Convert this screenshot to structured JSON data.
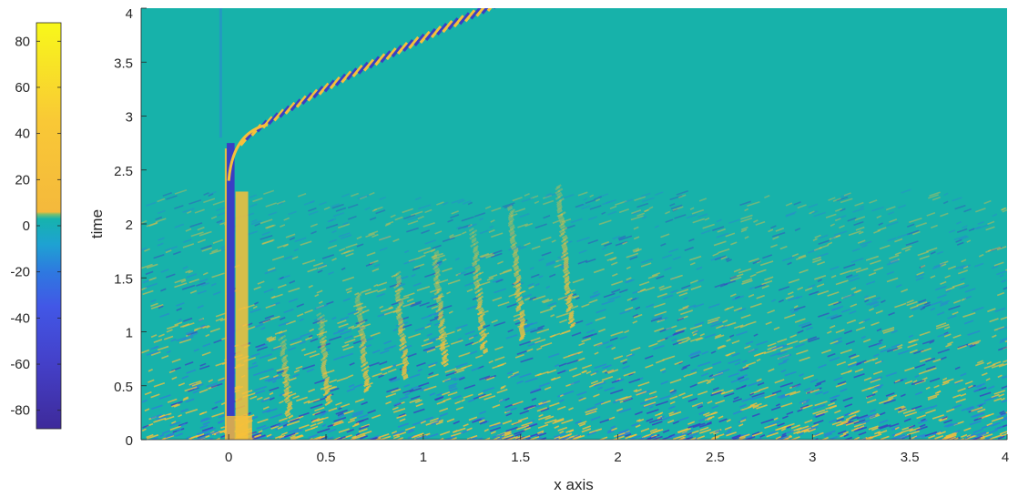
{
  "chart_data": {
    "type": "heatmap",
    "title": "",
    "xlabel": "x axis",
    "ylabel": "time",
    "xlim": [
      -0.45,
      4
    ],
    "ylim": [
      0,
      4
    ],
    "x_ticks": [
      {
        "value": 0,
        "label": "0"
      },
      {
        "value": 0.5,
        "label": "0.5"
      },
      {
        "value": 1,
        "label": "1"
      },
      {
        "value": 1.5,
        "label": "1.5"
      },
      {
        "value": 2,
        "label": "2"
      },
      {
        "value": 2.5,
        "label": "2.5"
      },
      {
        "value": 3,
        "label": "3"
      },
      {
        "value": 3.5,
        "label": "3.5"
      },
      {
        "value": 4,
        "label": "4"
      }
    ],
    "y_ticks": [
      {
        "value": 0,
        "label": "0"
      },
      {
        "value": 0.5,
        "label": "0.5"
      },
      {
        "value": 1,
        "label": "1"
      },
      {
        "value": 1.5,
        "label": "1.5"
      },
      {
        "value": 2,
        "label": "2"
      },
      {
        "value": 2.5,
        "label": "2.5"
      },
      {
        "value": 3,
        "label": "3"
      },
      {
        "value": 3.5,
        "label": "3.5"
      },
      {
        "value": 4,
        "label": "4"
      }
    ],
    "colorbar": {
      "clim": [
        -88,
        88
      ],
      "ticks": [
        {
          "value": 80,
          "label": "80"
        },
        {
          "value": 60,
          "label": "60"
        },
        {
          "value": 40,
          "label": "40"
        },
        {
          "value": 20,
          "label": "20"
        },
        {
          "value": 0,
          "label": "0"
        },
        {
          "value": -20,
          "label": "-20"
        },
        {
          "value": -40,
          "label": "-40"
        },
        {
          "value": -60,
          "label": "-60"
        },
        {
          "value": -80,
          "label": "-80"
        }
      ],
      "colors": [
        {
          "value": -88,
          "color": "#3e2a9a"
        },
        {
          "value": -60,
          "color": "#4440c8"
        },
        {
          "value": -35,
          "color": "#4257e6"
        },
        {
          "value": -20,
          "color": "#2e79e0"
        },
        {
          "value": -8,
          "color": "#1ea2d2"
        },
        {
          "value": 3,
          "color": "#16b3ad"
        },
        {
          "value": 5,
          "color": "#7fbf6a"
        },
        {
          "value": 6,
          "color": "#f4b93c"
        },
        {
          "value": 45,
          "color": "#f9c836"
        },
        {
          "value": 88,
          "color": "#f8f81a"
        }
      ]
    },
    "colors": {
      "background_field": "#17b2aa",
      "positive": "#f7c03a",
      "negative": "#3a3ec4",
      "mild_negative": "#2f7fd8"
    }
  }
}
